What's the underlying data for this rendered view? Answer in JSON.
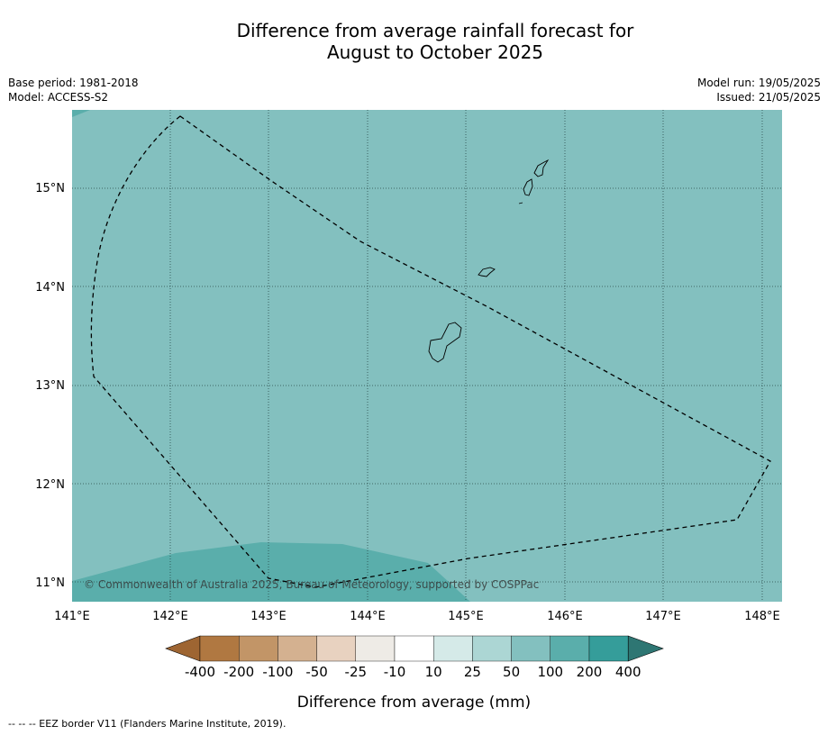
{
  "title_line1": "Difference from average rainfall forecast for",
  "title_line2": "August to October 2025",
  "base_period": "Base period: 1981-2018",
  "model": "Model: ACCESS-S2",
  "model_run": "Model run: 19/05/2025",
  "issued": "Issued: 21/05/2025",
  "copyright": "© Commonwealth of Australia 2025, Bureau of Meteorology, supported by COSPPac",
  "lon_labels": [
    "141°E",
    "142°E",
    "143°E",
    "144°E",
    "145°E",
    "146°E",
    "147°E",
    "148°E"
  ],
  "lat_labels": [
    "15°N",
    "14°N",
    "13°N",
    "12°N",
    "11°N"
  ],
  "colorbar": {
    "label": "Difference from average (mm)",
    "ticks": [
      "-400",
      "-200",
      "-100",
      "-50",
      "-25",
      "-10",
      "10",
      "25",
      "50",
      "100",
      "200",
      "400"
    ],
    "colors": [
      "#9e6532",
      "#b07841",
      "#c29567",
      "#d4b190",
      "#e8d2c0",
      "#eeebe6",
      "#ffffff",
      "#d5eae8",
      "#acd6d4",
      "#83c0bf",
      "#5aaeab",
      "#359d9a",
      "#2e7673"
    ]
  },
  "footnote": "--  --  -- EEZ border V11 (Flanders Marine Institute, 2019).",
  "map_colors": {
    "main_fill": "#83c0bf",
    "wet_fill": "#5aaeab"
  }
}
